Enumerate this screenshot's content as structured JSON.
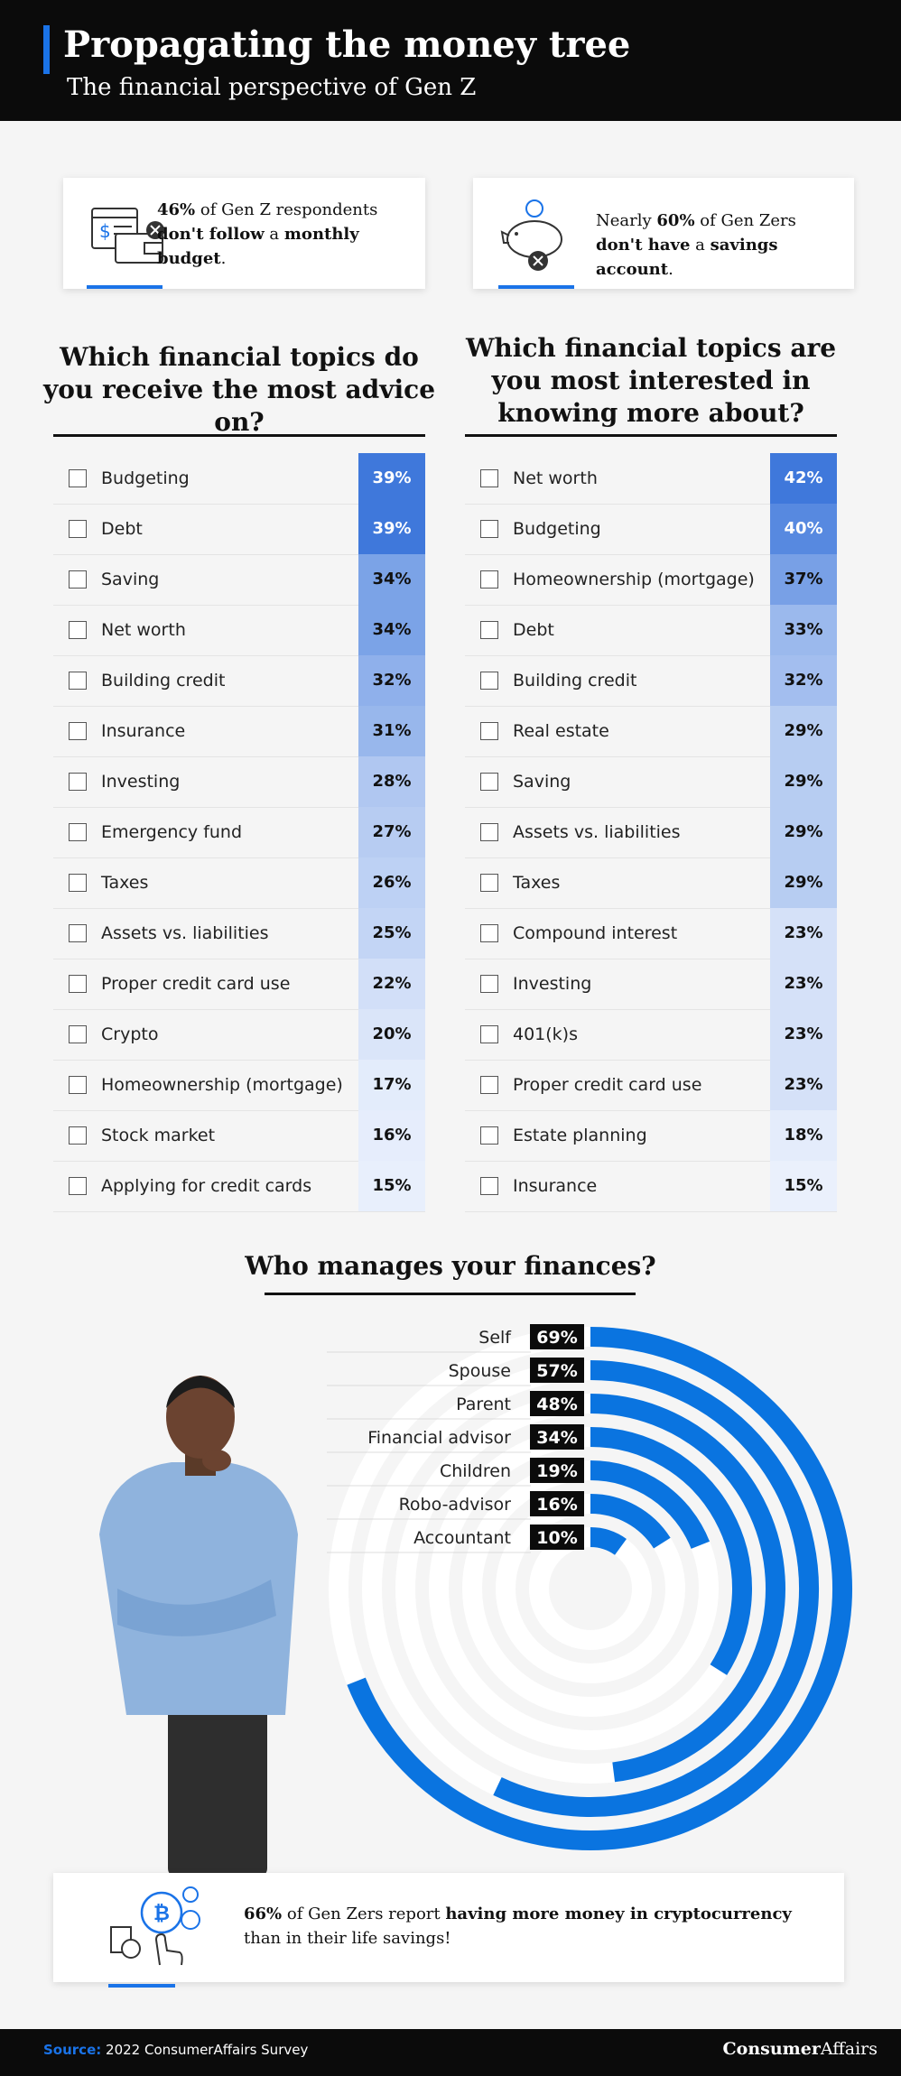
{
  "header": {
    "title": "Propagating the money tree",
    "subtitle": "The financial perspective of Gen Z"
  },
  "stats": [
    {
      "runs": [
        {
          "text": "46%",
          "bold": true
        },
        {
          "text": " of Gen Z respondents ",
          "bold": false
        },
        {
          "text": "don't follow",
          "bold": true
        },
        {
          "text": " a ",
          "bold": false
        },
        {
          "text": "monthly budget",
          "bold": true
        },
        {
          "text": ".",
          "bold": false
        }
      ]
    },
    {
      "runs": [
        {
          "text": "Nearly ",
          "bold": false
        },
        {
          "text": "60%",
          "bold": true
        },
        {
          "text": " of Gen Zers ",
          "bold": false
        },
        {
          "text": "don't have",
          "bold": true
        },
        {
          "text": " a ",
          "bold": false
        },
        {
          "text": "savings account",
          "bold": true
        },
        {
          "text": ".",
          "bold": false
        }
      ]
    },
    {
      "runs": [
        {
          "text": "66%",
          "bold": true
        },
        {
          "text": " of Gen Zers report ",
          "bold": false
        },
        {
          "text": "having more money in cryptocurrency",
          "bold": true
        },
        {
          "text": " than in their life savings!",
          "bold": false
        }
      ]
    }
  ],
  "chart_data": [
    {
      "type": "table-bar",
      "title": "Which financial topics do you receive the most advice on?",
      "color": "#3f78db",
      "categories": [
        "Budgeting",
        "Debt",
        "Saving",
        "Net worth",
        "Building credit",
        "Insurance",
        "Investing",
        "Emergency fund",
        "Taxes",
        "Assets vs. liabilities",
        "Proper credit card use",
        "Crypto",
        "Homeownership (mortgage)",
        "Stock market",
        "Applying for credit cards"
      ],
      "values": [
        39,
        39,
        34,
        34,
        32,
        31,
        28,
        27,
        26,
        25,
        22,
        20,
        17,
        16,
        15
      ],
      "value_labels": [
        "39%",
        "39%",
        "34%",
        "34%",
        "32%",
        "31%",
        "28%",
        "27%",
        "26%",
        "25%",
        "22%",
        "20%",
        "17%",
        "16%",
        "15%"
      ]
    },
    {
      "type": "table-bar",
      "title": "Which financial topics are you most interested in knowing more about?",
      "color": "#3f78db",
      "categories": [
        "Net worth",
        "Budgeting",
        "Homeownership (mortgage)",
        "Debt",
        "Building credit",
        "Real estate",
        "Saving",
        "Assets vs. liabilities",
        "Taxes",
        "Compound interest",
        "Investing",
        "401(k)s",
        "Proper credit card use",
        "Estate planning",
        "Insurance"
      ],
      "values": [
        42,
        40,
        37,
        33,
        32,
        29,
        29,
        29,
        29,
        23,
        23,
        23,
        23,
        18,
        15
      ],
      "value_labels": [
        "42%",
        "40%",
        "37%",
        "33%",
        "32%",
        "29%",
        "29%",
        "29%",
        "29%",
        "23%",
        "23%",
        "23%",
        "23%",
        "18%",
        "15%"
      ]
    },
    {
      "type": "radial-bar",
      "title": "Who manages your finances?",
      "color": "#0a74e0",
      "categories": [
        "Self",
        "Spouse",
        "Parent",
        "Financial advisor",
        "Children",
        "Robo-advisor",
        "Accountant"
      ],
      "values": [
        69,
        57,
        48,
        34,
        19,
        16,
        10
      ],
      "value_labels": [
        "69%",
        "57%",
        "48%",
        "34%",
        "19%",
        "16%",
        "10%"
      ],
      "xlim": [
        0,
        100
      ]
    }
  ],
  "footer": {
    "source_label": "Source:",
    "source": "2022 ConsumerAffairs Survey",
    "logo_bold": "Consumer",
    "logo_regular": "Affairs"
  }
}
